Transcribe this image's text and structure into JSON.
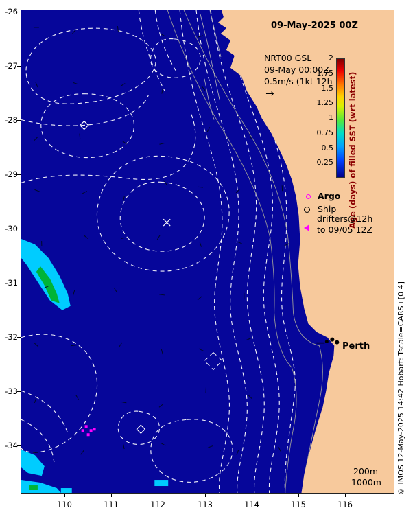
{
  "title": "09-May-2025 00Z",
  "info": {
    "line1": "NRT00 GSL",
    "line2": "09-May 00:00Z",
    "line3": "0.5m/s (1kt 12h",
    "arrow_glyph": "→"
  },
  "colorbar": {
    "label": "Age (days) of filled SST (wrt latest)",
    "ticks": [
      "2",
      "1.75",
      "1.5",
      "1.25",
      "1",
      "0.75",
      "0.5",
      "0.25"
    ]
  },
  "legend": {
    "argo_label": "Argo",
    "ship_label": "Ship",
    "drifters_line1": "drifters@12h",
    "drifters_line2": "to 09/05 12Z"
  },
  "map_labels": {
    "city": "Perth",
    "depth_200": "200m",
    "depth_1000": "1000m"
  },
  "axes": {
    "x_ticks": [
      "110",
      "111",
      "112",
      "113",
      "114",
      "115",
      "116"
    ],
    "y_ticks": [
      "-26",
      "-27",
      "-28",
      "-29",
      "-30",
      "-31",
      "-32",
      "-33",
      "-34"
    ]
  },
  "copyright": "© IMOS 12-May-2025 14:42 Hobart: Tscale=CARS+[0 4]",
  "colors": {
    "ocean": "#06069a",
    "land": "#f7c99c",
    "contour": "#ffffff",
    "sst_cyan": "#00ccff",
    "sst_green": "#00b437",
    "drifter_magenta": "#ff00ff",
    "colorbar_label": "#8b0000"
  },
  "chart_data": {
    "type": "map",
    "lon_range": [
      109.05,
      117.05
    ],
    "lat_range": [
      -34.9,
      -25.95
    ],
    "x_tick_values": [
      110,
      111,
      112,
      113,
      114,
      115,
      116
    ],
    "y_tick_values": [
      -26,
      -27,
      -28,
      -29,
      -30,
      -31,
      -32,
      -33,
      -34
    ],
    "colorbar_range": {
      "min": 0,
      "max": 2,
      "step": 0.25,
      "units": "days"
    },
    "isobath_depths_m": [
      200,
      1000
    ],
    "city_markers": [
      {
        "name": "Perth",
        "lon": 115.7,
        "lat": -32.0
      }
    ]
  }
}
